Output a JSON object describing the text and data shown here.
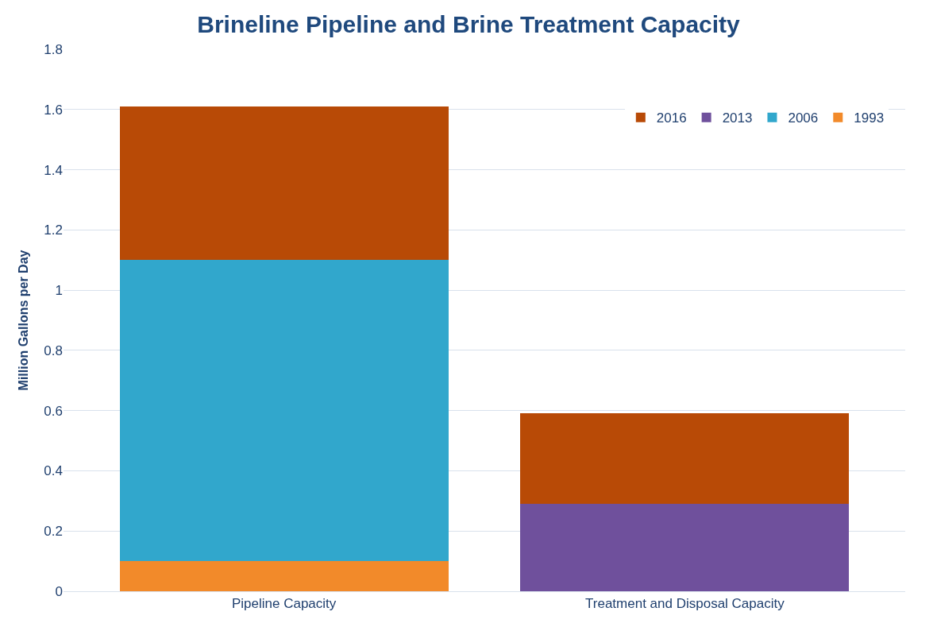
{
  "chart_data": {
    "type": "bar",
    "title": "Brineline Pipeline and Brine Treatment Capacity",
    "ylabel": "Million Gallons per Day",
    "categories": [
      "Pipeline Capacity",
      "Treatment and Disposal Capacity"
    ],
    "series": [
      {
        "name": "1993",
        "color": "#f28a2a",
        "values": [
          0.1,
          null
        ]
      },
      {
        "name": "2006",
        "color": "#31a7cc",
        "values": [
          1.0,
          null
        ]
      },
      {
        "name": "2013",
        "color": "#6f509c",
        "values": [
          null,
          0.29
        ]
      },
      {
        "name": "2016",
        "color": "#b84a06",
        "values": [
          0.51,
          0.3
        ]
      }
    ],
    "stacked": true,
    "ylim": [
      0,
      1.8
    ],
    "yticks": [
      0,
      0.2,
      0.4,
      0.6,
      0.8,
      1,
      1.2,
      1.4,
      1.6,
      1.8
    ],
    "grid": "y",
    "legend": "top right"
  }
}
